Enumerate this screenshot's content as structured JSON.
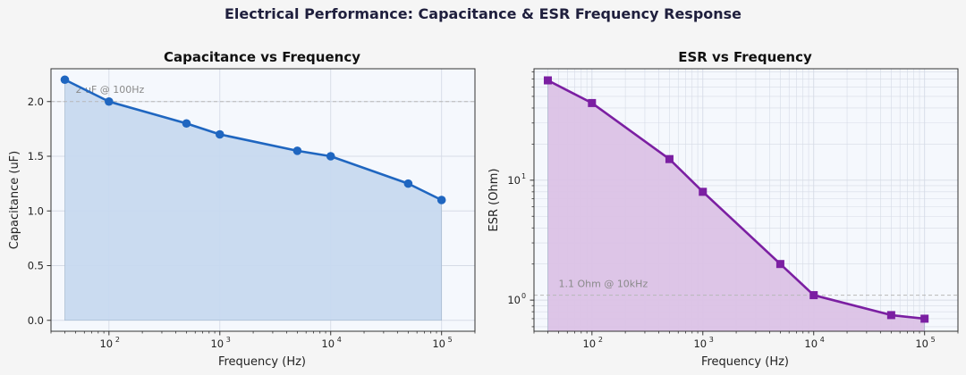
{
  "figure": {
    "title": "Electrical Performance: Capacitance & ESR Frequency Response"
  },
  "colors": {
    "figure_bg": "#f5f5f5",
    "axes_bg": "#f5f8fd",
    "capacitance_line": "#1f66c0",
    "capacitance_fill": "#c7d9ef",
    "esr_line": "#7b1fa2",
    "esr_fill": "#dbc2e6",
    "reference_line": "#b8b8b8"
  },
  "chart_data": [
    {
      "type": "area",
      "title": "Capacitance vs Frequency",
      "xlabel": "Frequency (Hz)",
      "ylabel": "Capacitance (uF)",
      "xscale": "log",
      "yscale": "linear",
      "xlim": [
        30,
        200000
      ],
      "ylim": [
        -0.1,
        2.3
      ],
      "x": [
        40,
        100,
        500,
        1000,
        5000,
        10000,
        50000,
        100000
      ],
      "values": [
        2.2,
        2.0,
        1.8,
        1.7,
        1.55,
        1.5,
        1.25,
        1.1
      ],
      "marker": "circle",
      "grid": true,
      "xticks": [
        {
          "base": "10",
          "exp": "2",
          "value": 100
        },
        {
          "base": "10",
          "exp": "3",
          "value": 1000
        },
        {
          "base": "10",
          "exp": "4",
          "value": 10000
        },
        {
          "base": "10",
          "exp": "5",
          "value": 100000
        }
      ],
      "yticks": [
        {
          "label": "0.0",
          "value": 0
        },
        {
          "label": "0.5",
          "value": 0.5
        },
        {
          "label": "1.0",
          "value": 1.0
        },
        {
          "label": "1.5",
          "value": 1.5
        },
        {
          "label": "2.0",
          "value": 2.0
        }
      ],
      "reference": {
        "value": 2.0,
        "label": "2 uF @ 100Hz",
        "label_x": 50,
        "label_y": 2.08
      }
    },
    {
      "type": "area",
      "title": "ESR vs Frequency",
      "xlabel": "Frequency (Hz)",
      "ylabel": "ESR (Ohm)",
      "xscale": "log",
      "yscale": "log",
      "xlim": [
        30,
        200000
      ],
      "ylim": [
        0.55,
        85
      ],
      "x": [
        40,
        100,
        500,
        1000,
        5000,
        10000,
        50000,
        100000
      ],
      "values": [
        68,
        44,
        15,
        8,
        2.0,
        1.1,
        0.75,
        0.7
      ],
      "marker": "square",
      "grid": true,
      "xticks": [
        {
          "base": "10",
          "exp": "2",
          "value": 100
        },
        {
          "base": "10",
          "exp": "3",
          "value": 1000
        },
        {
          "base": "10",
          "exp": "4",
          "value": 10000
        },
        {
          "base": "10",
          "exp": "5",
          "value": 100000
        }
      ],
      "yticks": [
        {
          "base": "10",
          "exp": "0",
          "value": 1
        },
        {
          "base": "10",
          "exp": "1",
          "value": 10
        }
      ],
      "reference": {
        "value": 1.1,
        "label": "1.1 Ohm @ 10kHz",
        "label_x": 50,
        "label_y": 1.28
      }
    }
  ]
}
